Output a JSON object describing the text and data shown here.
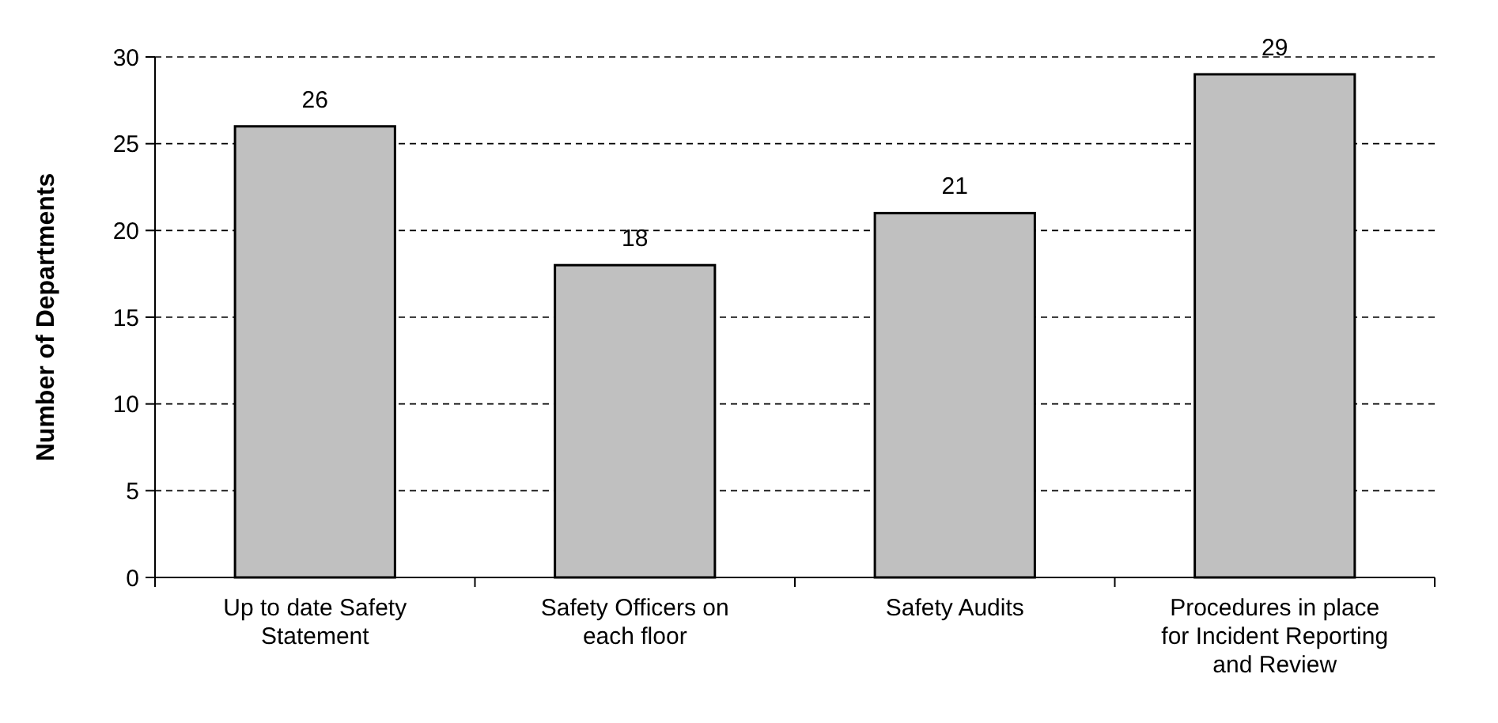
{
  "chart_data": {
    "type": "bar",
    "ylabel": "Number of Departments",
    "categories": [
      "Up to date Safety Statement",
      "Safety Officers on each floor",
      "Safety Audits",
      "Procedures in place for Incident Reporting and Review"
    ],
    "values": [
      26,
      18,
      21,
      29
    ],
    "color": "#c0c0c0",
    "data_labels": true,
    "ylim": [
      0,
      30
    ],
    "yticks": [
      0,
      5,
      10,
      15,
      20,
      25,
      30
    ],
    "grid": "y"
  }
}
